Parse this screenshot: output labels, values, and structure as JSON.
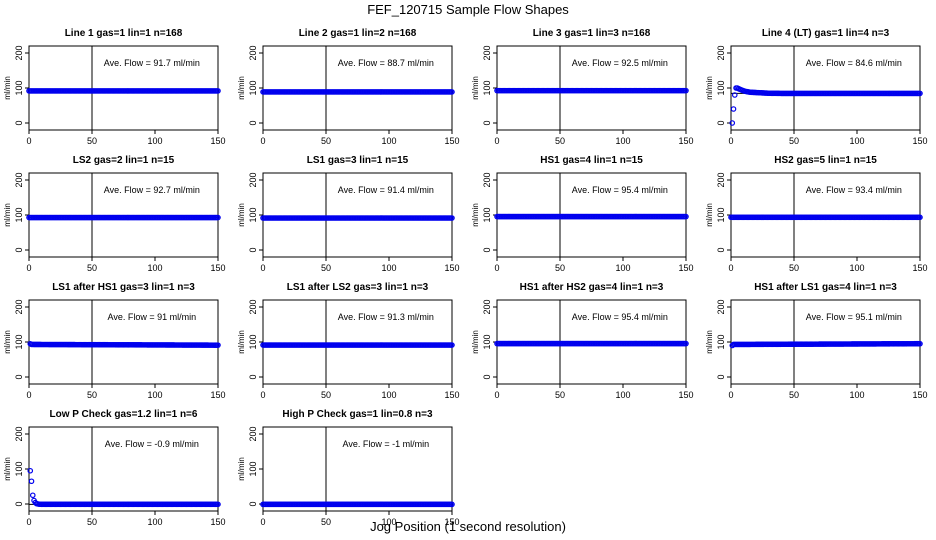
{
  "page": {
    "title": "FEF_120715  Sample Flow Shapes",
    "xlabel": "Jog Position (1 second resolution)"
  },
  "chart_data": [
    {
      "type": "scatter",
      "title": "Line 1 gas=1 lin=1 n=168",
      "ylabel": "ml/min",
      "annotation": "Ave. Flow = 91.7  ml/min",
      "mean": 91.7,
      "xlim": [
        0,
        150
      ],
      "ylim": [
        -20,
        220
      ],
      "xticks": [
        0,
        50,
        100,
        150
      ],
      "yticks": [
        0,
        100,
        200
      ],
      "vline_x": 50,
      "shape": "flat",
      "x": [
        0,
        150
      ],
      "y": [
        91.7,
        91.7
      ]
    },
    {
      "type": "scatter",
      "title": "Line 2 gas=1 lin=2 n=168",
      "ylabel": "ml/min",
      "annotation": "Ave. Flow = 88.7  ml/min",
      "mean": 88.7,
      "xlim": [
        0,
        150
      ],
      "ylim": [
        -20,
        220
      ],
      "xticks": [
        0,
        50,
        100,
        150
      ],
      "yticks": [
        0,
        100,
        200
      ],
      "vline_x": 50,
      "shape": "flat",
      "x": [
        0,
        150
      ],
      "y": [
        88.7,
        88.7
      ]
    },
    {
      "type": "scatter",
      "title": "Line 3 gas=1 lin=3 n=168",
      "ylabel": "ml/min",
      "annotation": "Ave. Flow = 92.5  ml/min",
      "mean": 92.5,
      "xlim": [
        0,
        150
      ],
      "ylim": [
        -20,
        220
      ],
      "xticks": [
        0,
        50,
        100,
        150
      ],
      "yticks": [
        0,
        100,
        200
      ],
      "vline_x": 50,
      "shape": "flat",
      "x": [
        0,
        150
      ],
      "y": [
        92.5,
        92.5
      ]
    },
    {
      "type": "scatter",
      "title": "Line 4 (LT) gas=1 lin=4 n=3",
      "ylabel": "ml/min",
      "annotation": "Ave. Flow = 84.6  ml/min",
      "mean": 84.6,
      "xlim": [
        0,
        150
      ],
      "ylim": [
        -20,
        220
      ],
      "xticks": [
        0,
        50,
        100,
        150
      ],
      "yticks": [
        0,
        100,
        200
      ],
      "vline_x": 50,
      "shape": "flat",
      "x": [
        1,
        2,
        3,
        4,
        5,
        6,
        8,
        10,
        12,
        15,
        20,
        25,
        30,
        40,
        150
      ],
      "y": [
        0,
        40,
        80,
        100,
        100,
        98,
        95,
        92,
        90,
        88,
        87,
        86,
        85,
        84.6,
        84.6
      ]
    },
    {
      "type": "scatter",
      "title": "LS2 gas=2 lin=1 n=15",
      "ylabel": "ml/min",
      "annotation": "Ave. Flow = 92.7  ml/min",
      "mean": 92.7,
      "xlim": [
        0,
        150
      ],
      "ylim": [
        -20,
        220
      ],
      "xticks": [
        0,
        50,
        100,
        150
      ],
      "yticks": [
        0,
        100,
        200
      ],
      "vline_x": 50,
      "shape": "flat",
      "x": [
        0,
        150
      ],
      "y": [
        92.7,
        92.7
      ]
    },
    {
      "type": "scatter",
      "title": "LS1 gas=3 lin=1 n=15",
      "ylabel": "ml/min",
      "annotation": "Ave. Flow = 91.4  ml/min",
      "mean": 91.4,
      "xlim": [
        0,
        150
      ],
      "ylim": [
        -20,
        220
      ],
      "xticks": [
        0,
        50,
        100,
        150
      ],
      "yticks": [
        0,
        100,
        200
      ],
      "vline_x": 50,
      "shape": "flat",
      "x": [
        0,
        150
      ],
      "y": [
        91.4,
        91.4
      ]
    },
    {
      "type": "scatter",
      "title": "HS1 gas=4 lin=1 n=15",
      "ylabel": "ml/min",
      "annotation": "Ave. Flow = 95.4  ml/min",
      "mean": 95.4,
      "xlim": [
        0,
        150
      ],
      "ylim": [
        -20,
        220
      ],
      "xticks": [
        0,
        50,
        100,
        150
      ],
      "yticks": [
        0,
        100,
        200
      ],
      "vline_x": 50,
      "shape": "flat",
      "x": [
        0,
        150
      ],
      "y": [
        95.4,
        95.4
      ]
    },
    {
      "type": "scatter",
      "title": "HS2 gas=5 lin=1 n=15",
      "ylabel": "ml/min",
      "annotation": "Ave. Flow = 93.4  ml/min",
      "mean": 93.4,
      "xlim": [
        0,
        150
      ],
      "ylim": [
        -20,
        220
      ],
      "xticks": [
        0,
        50,
        100,
        150
      ],
      "yticks": [
        0,
        100,
        200
      ],
      "vline_x": 50,
      "shape": "flat",
      "x": [
        0,
        150
      ],
      "y": [
        93.4,
        93.4
      ]
    },
    {
      "type": "scatter",
      "title": "LS1 after HS1 gas=3 lin=1 n=3",
      "ylabel": "ml/min",
      "annotation": "Ave. Flow = 91  ml/min",
      "mean": 91,
      "xlim": [
        0,
        150
      ],
      "ylim": [
        -20,
        220
      ],
      "xticks": [
        0,
        50,
        100,
        150
      ],
      "yticks": [
        0,
        100,
        200
      ],
      "vline_x": 50,
      "shape": "flat",
      "x": [
        1,
        2,
        150
      ],
      "y": [
        95,
        93,
        91
      ]
    },
    {
      "type": "scatter",
      "title": "LS1 after LS2 gas=3 lin=1 n=3",
      "ylabel": "ml/min",
      "annotation": "Ave. Flow = 91.3  ml/min",
      "mean": 91.3,
      "xlim": [
        0,
        150
      ],
      "ylim": [
        -20,
        220
      ],
      "xticks": [
        0,
        50,
        100,
        150
      ],
      "yticks": [
        0,
        100,
        200
      ],
      "vline_x": 50,
      "shape": "flat",
      "x": [
        0,
        150
      ],
      "y": [
        91.3,
        91.3
      ]
    },
    {
      "type": "scatter",
      "title": "HS1 after HS2 gas=4 lin=1 n=3",
      "ylabel": "ml/min",
      "annotation": "Ave. Flow = 95.4  ml/min",
      "mean": 95.4,
      "xlim": [
        0,
        150
      ],
      "ylim": [
        -20,
        220
      ],
      "xticks": [
        0,
        50,
        100,
        150
      ],
      "yticks": [
        0,
        100,
        200
      ],
      "vline_x": 50,
      "shape": "flat",
      "x": [
        0,
        150
      ],
      "y": [
        95.4,
        95.4
      ]
    },
    {
      "type": "scatter",
      "title": "HS1 after LS1 gas=4 lin=1 n=3",
      "ylabel": "ml/min",
      "annotation": "Ave. Flow = 95.1  ml/min",
      "mean": 95.1,
      "xlim": [
        0,
        150
      ],
      "ylim": [
        -20,
        220
      ],
      "xticks": [
        0,
        50,
        100,
        150
      ],
      "yticks": [
        0,
        100,
        200
      ],
      "vline_x": 50,
      "shape": "flat",
      "x": [
        1,
        2,
        150
      ],
      "y": [
        90,
        93,
        95.1
      ]
    },
    {
      "type": "scatter",
      "title": "Low P Check gas=1.2 lin=1 n=6",
      "ylabel": "ml/min",
      "annotation": "Ave. Flow = -0.9  ml/min",
      "mean": -0.9,
      "xlim": [
        0,
        150
      ],
      "ylim": [
        -20,
        220
      ],
      "xticks": [
        0,
        50,
        100,
        150
      ],
      "yticks": [
        0,
        100,
        200
      ],
      "vline_x": 50,
      "shape": "decay",
      "x": [
        1,
        2,
        3,
        4,
        5,
        6,
        8,
        10,
        150
      ],
      "y": [
        95,
        65,
        25,
        10,
        4,
        1,
        -0.5,
        -0.9,
        -0.9
      ]
    },
    {
      "type": "scatter",
      "title": "High P Check gas=1 lin=0.8 n=3",
      "ylabel": "ml/min",
      "annotation": "Ave. Flow = -1  ml/min",
      "mean": -1,
      "xlim": [
        0,
        150
      ],
      "ylim": [
        -20,
        220
      ],
      "xticks": [
        0,
        50,
        100,
        150
      ],
      "yticks": [
        0,
        100,
        200
      ],
      "vline_x": 50,
      "shape": "flat",
      "x": [
        0,
        150
      ],
      "y": [
        -1,
        -1
      ]
    }
  ]
}
